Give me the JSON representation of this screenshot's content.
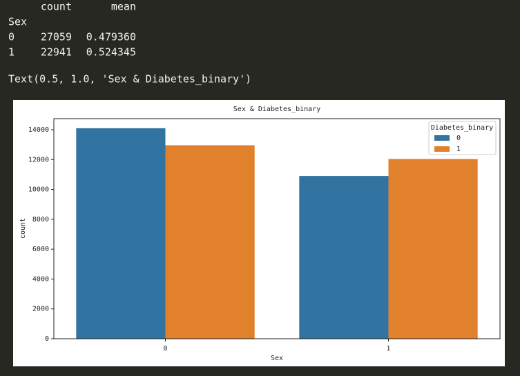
{
  "output": {
    "table": {
      "columns": [
        "count",
        "mean"
      ],
      "index_name": "Sex",
      "rows": [
        [
          "0",
          "27059",
          "0.479360"
        ],
        [
          "1",
          "22941",
          "0.524345"
        ]
      ]
    },
    "repr": "Text(0.5, 1.0, 'Sex & Diabetes_binary')"
  },
  "chart_data": {
    "type": "bar",
    "title": "Sex & Diabetes_binary",
    "x_label": "Sex",
    "y_label": "count",
    "categories": [
      "0",
      "1"
    ],
    "series": [
      {
        "name": "0",
        "color": "#3274a1",
        "values": [
          14100,
          10900
        ]
      },
      {
        "name": "1",
        "color": "#e1812c",
        "values": [
          12960,
          12040
        ]
      }
    ],
    "ylim": [
      0,
      14740
    ],
    "yticks": [
      0,
      2000,
      4000,
      6000,
      8000,
      10000,
      12000,
      14000
    ],
    "grid": false,
    "legend_title": "Diabetes_binary",
    "legend_position": "upper-right"
  }
}
